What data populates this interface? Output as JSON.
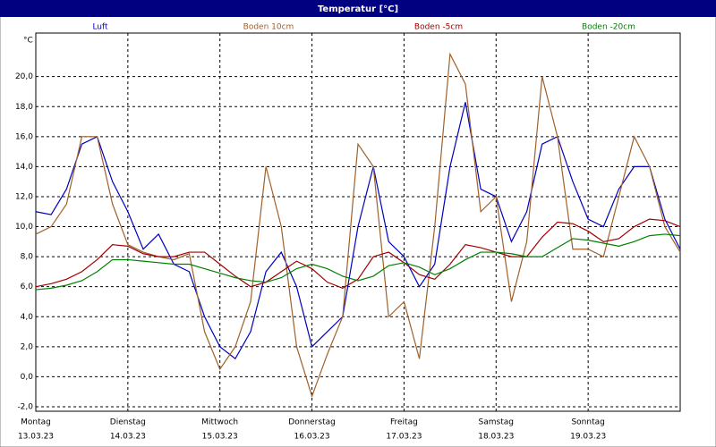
{
  "chart_data": {
    "type": "line",
    "title": "Temperatur [°C]",
    "y_label": "°C",
    "x": [
      0,
      4,
      8,
      12,
      16,
      20,
      24,
      28,
      32,
      36,
      40,
      44,
      48,
      52,
      56,
      60,
      64,
      68,
      72,
      76,
      80,
      84,
      88,
      92,
      96,
      100,
      104,
      108,
      112,
      116,
      120,
      124,
      128,
      132,
      136,
      140,
      144,
      148,
      152,
      156,
      160,
      164,
      168
    ],
    "series": [
      {
        "name": "Luft",
        "color": "#0000c0",
        "values": [
          11.0,
          10.8,
          12.5,
          15.5,
          16.0,
          13.0,
          11.0,
          8.5,
          9.5,
          7.5,
          7.0,
          4.0,
          2.0,
          1.2,
          3.0,
          7.0,
          8.3,
          6.0,
          2.0,
          3.0,
          4.0,
          10.0,
          14.0,
          9.0,
          8.0,
          6.0,
          7.5,
          14.0,
          18.3,
          12.5,
          12.0,
          9.0,
          11.0,
          15.5,
          16.0,
          13.0,
          10.5,
          10.0,
          12.5,
          14.0,
          14.0,
          10.5,
          8.5
        ]
      },
      {
        "name": "Boden 10cm",
        "color": "#a0602a",
        "values": [
          9.5,
          10.0,
          11.5,
          16.0,
          16.0,
          11.5,
          8.8,
          8.3,
          8.0,
          7.8,
          8.2,
          3.0,
          0.5,
          2.0,
          5.0,
          14.0,
          10.0,
          2.0,
          -1.3,
          1.5,
          4.0,
          15.5,
          14.0,
          4.0,
          5.0,
          1.2,
          10.0,
          21.5,
          19.5,
          11.0,
          12.0,
          5.0,
          9.0,
          20.0,
          16.0,
          8.5,
          8.5,
          8.0,
          12.0,
          16.0,
          14.0,
          10.0,
          8.3
        ]
      },
      {
        "name": "Boden -5cm",
        "color": "#a00000",
        "values": [
          6.0,
          6.2,
          6.5,
          7.0,
          7.8,
          8.8,
          8.7,
          8.2,
          8.0,
          8.0,
          8.3,
          8.3,
          7.5,
          6.7,
          6.0,
          6.3,
          7.0,
          7.7,
          7.2,
          6.3,
          5.9,
          6.5,
          8.0,
          8.3,
          7.6,
          6.8,
          6.5,
          7.5,
          8.8,
          8.6,
          8.3,
          8.0,
          8.0,
          9.3,
          10.3,
          10.2,
          9.7,
          9.0,
          9.2,
          10.0,
          10.5,
          10.4,
          10.0
        ]
      },
      {
        "name": "Boden -20cm",
        "color": "#008000",
        "values": [
          5.8,
          5.9,
          6.1,
          6.4,
          7.0,
          7.8,
          7.8,
          7.7,
          7.6,
          7.5,
          7.5,
          7.2,
          6.9,
          6.6,
          6.4,
          6.3,
          6.6,
          7.2,
          7.5,
          7.2,
          6.7,
          6.4,
          6.7,
          7.4,
          7.6,
          7.3,
          6.8,
          7.2,
          7.8,
          8.3,
          8.3,
          8.2,
          8.0,
          8.0,
          8.6,
          9.2,
          9.1,
          8.9,
          8.7,
          9.0,
          9.4,
          9.5,
          9.4
        ]
      }
    ],
    "xlim": [
      0,
      168
    ],
    "xticks": [
      {
        "value": 0,
        "label": "Montag"
      },
      {
        "value": 24,
        "label": "Dienstag"
      },
      {
        "value": 48,
        "label": "Mittwoch"
      },
      {
        "value": 72,
        "label": "Donnerstag"
      },
      {
        "value": 96,
        "label": "Freitag"
      },
      {
        "value": 120,
        "label": "Samstag"
      },
      {
        "value": 144,
        "label": "Sonntag"
      }
    ],
    "xtick_dates": [
      "13.03.23",
      "14.03.23",
      "15.03.23",
      "16.03.23",
      "17.03.23",
      "18.03.23",
      "19.03.23"
    ],
    "ylim": [
      -2.3,
      22.9
    ],
    "yticks": [
      {
        "value": -2,
        "label": "-2,0"
      },
      {
        "value": 0,
        "label": "0,0"
      },
      {
        "value": 2,
        "label": "2,0"
      },
      {
        "value": 4,
        "label": "4,0"
      },
      {
        "value": 6,
        "label": "6,0"
      },
      {
        "value": 8,
        "label": "8,0"
      },
      {
        "value": 10,
        "label": "10,0"
      },
      {
        "value": 12,
        "label": "12,0"
      },
      {
        "value": 14,
        "label": "14,0"
      },
      {
        "value": 16,
        "label": "16,0"
      },
      {
        "value": 18,
        "label": "18,0"
      },
      {
        "value": 20,
        "label": "20,0"
      }
    ],
    "grid": true
  }
}
